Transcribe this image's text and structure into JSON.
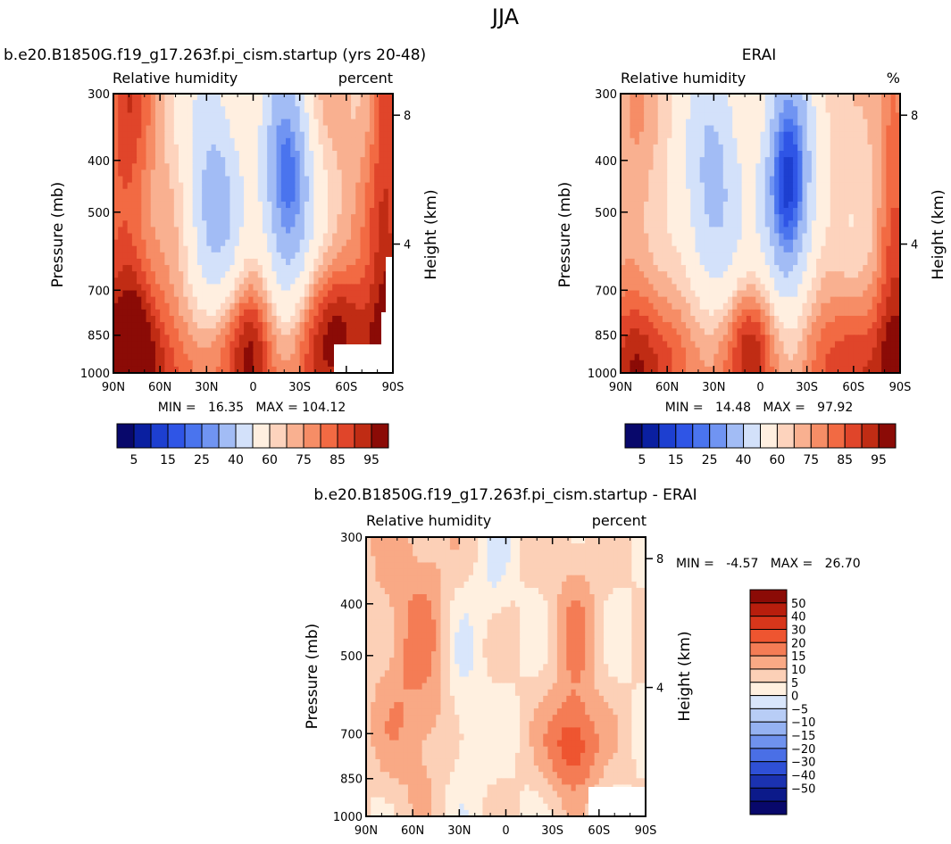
{
  "figure": {
    "title": "JJA"
  },
  "colormap": {
    "full_stops": [
      "#08086b",
      "#0a1fa0",
      "#1d3fd0",
      "#3d63ea",
      "#6a8ff0",
      "#a2bcf5",
      "#d3e1fa",
      "#ffefe0",
      "#fdd3bd",
      "#f9b090",
      "#f68d66",
      "#f26a43",
      "#e8492a",
      "#cf3218",
      "#a81c0c",
      "#7a0a06"
    ],
    "rh_colors": [
      "#08086b",
      "#0a1fa0",
      "#1d3fd0",
      "#2f55e6",
      "#4a74ee",
      "#7094f2",
      "#a2bcf5",
      "#d3e1fa",
      "#ffefe0",
      "#fdd3bd",
      "#f9b090",
      "#f68d66",
      "#f26a43",
      "#e0452a",
      "#c02c14",
      "#8b0b06"
    ],
    "diff_colors_top_to_bottom": [
      "#8b0b06",
      "#b81e0d",
      "#d8361b",
      "#ee5530",
      "#f47c55",
      "#f9a985",
      "#fcd0b7",
      "#fff0e0",
      "#d9e6fb",
      "#b8cdf6",
      "#95b2f2",
      "#6f92ee",
      "#4a6fe6",
      "#2f50d6",
      "#1b32b0",
      "#0c1a8a",
      "#08086b"
    ]
  },
  "labels": {
    "field_name": "Relative humidity",
    "y_left_title": "Pressure (mb)",
    "y_right_title": "Height (km)"
  },
  "chart_data": [
    {
      "type": "heatmap",
      "title": "b.e20.B1850G.f19_g17.263f.pi_cism.startup (yrs 20-48)",
      "left_string": "Relative humidity",
      "right_string": "percent",
      "xlabel": "",
      "ylabel": "Pressure (mb)",
      "y2label": "Height (km)",
      "x_ticks": [
        "90N",
        "60N",
        "30N",
        "0",
        "30S",
        "60S",
        "90S"
      ],
      "x_range": [
        90,
        -90
      ],
      "y_ticks": [
        300,
        400,
        500,
        700,
        850,
        1000
      ],
      "y_range": [
        1000,
        300
      ],
      "y_scale": "log",
      "y2_ticks": [
        8,
        4
      ],
      "min": "16.35",
      "max": "104.12",
      "min_text": "MIN =   16.35   MAX = 104.12",
      "colorbar_labels": [
        "5",
        "15",
        "25",
        "40",
        "60",
        "75",
        "85",
        "95"
      ],
      "colorbar_levels": [
        5,
        10,
        15,
        20,
        25,
        30,
        40,
        50,
        60,
        65,
        70,
        75,
        80,
        85,
        90,
        95
      ]
    },
    {
      "type": "heatmap",
      "title": "ERAI",
      "left_string": "Relative humidity",
      "right_string": "%",
      "xlabel": "",
      "ylabel": "Pressure (mb)",
      "y2label": "Height (km)",
      "x_ticks": [
        "90N",
        "60N",
        "30N",
        "0",
        "30S",
        "60S",
        "90S"
      ],
      "x_range": [
        90,
        -90
      ],
      "y_ticks": [
        300,
        400,
        500,
        700,
        850,
        1000
      ],
      "y_range": [
        1000,
        300
      ],
      "y_scale": "log",
      "y2_ticks": [
        8,
        4
      ],
      "min": "14.48",
      "max": "97.92",
      "min_text": "MIN =   14.48   MAX =   97.92",
      "colorbar_labels": [
        "5",
        "15",
        "25",
        "40",
        "60",
        "75",
        "85",
        "95"
      ],
      "colorbar_levels": [
        5,
        10,
        15,
        20,
        25,
        30,
        40,
        50,
        60,
        65,
        70,
        75,
        80,
        85,
        90,
        95
      ]
    },
    {
      "type": "heatmap",
      "title": "b.e20.B1850G.f19_g17.263f.pi_cism.startup - ERAI",
      "left_string": "Relative humidity",
      "right_string": "percent",
      "xlabel": "",
      "ylabel": "Pressure (mb)",
      "y2label": "Height (km)",
      "x_ticks": [
        "90N",
        "60N",
        "30N",
        "0",
        "30S",
        "60S",
        "90S"
      ],
      "x_range": [
        90,
        -90
      ],
      "y_ticks": [
        300,
        400,
        500,
        700,
        850,
        1000
      ],
      "y_range": [
        1000,
        300
      ],
      "y_scale": "log",
      "y2_ticks": [
        8,
        4
      ],
      "min": "-4.57",
      "max": "26.70",
      "min_text": "MIN =   -4.57   MAX =   26.70",
      "colorbar_labels": [
        "50",
        "40",
        "30",
        "20",
        "15",
        "10",
        "5",
        "0",
        "−5",
        "−10",
        "−15",
        "−20",
        "−30",
        "−40",
        "−50"
      ],
      "colorbar_levels": [
        50,
        40,
        30,
        20,
        15,
        10,
        5,
        0,
        -5,
        -10,
        -15,
        -20,
        -30,
        -40,
        -50
      ]
    }
  ]
}
